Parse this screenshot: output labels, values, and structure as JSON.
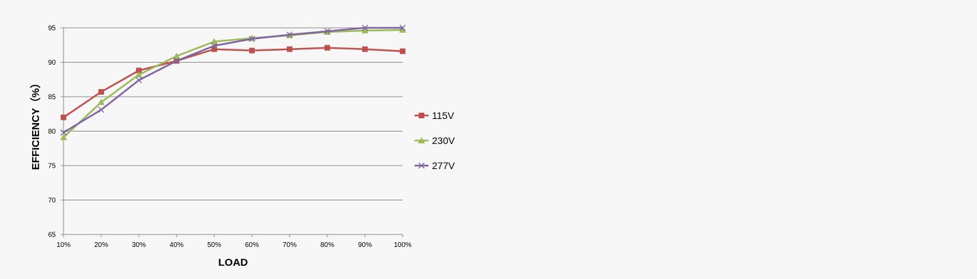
{
  "chart_data": {
    "type": "line",
    "title": "",
    "xlabel": "LOAD",
    "ylabel": "EFFICIENCY（%）",
    "categories": [
      "10%",
      "20%",
      "30%",
      "40%",
      "50%",
      "60%",
      "70%",
      "80%",
      "90%",
      "100%"
    ],
    "ylim": [
      65,
      95
    ],
    "yticks": [
      65,
      70,
      75,
      80,
      85,
      90,
      95
    ],
    "grid": true,
    "legend_position": "right",
    "series": [
      {
        "name": "115V",
        "color": "#c0504d",
        "marker": "square",
        "values": [
          82.0,
          85.7,
          88.8,
          90.2,
          91.9,
          91.7,
          91.9,
          92.1,
          91.9,
          91.6
        ]
      },
      {
        "name": "230V",
        "color": "#9bbb59",
        "marker": "triangle",
        "values": [
          79.1,
          84.2,
          88.2,
          90.9,
          93.0,
          93.5,
          93.9,
          94.4,
          94.6,
          94.7
        ]
      },
      {
        "name": "277V",
        "color": "#8064a2",
        "marker": "x",
        "values": [
          79.8,
          83.1,
          87.4,
          90.2,
          92.4,
          93.4,
          94.0,
          94.5,
          95.0,
          95.0
        ]
      }
    ]
  }
}
